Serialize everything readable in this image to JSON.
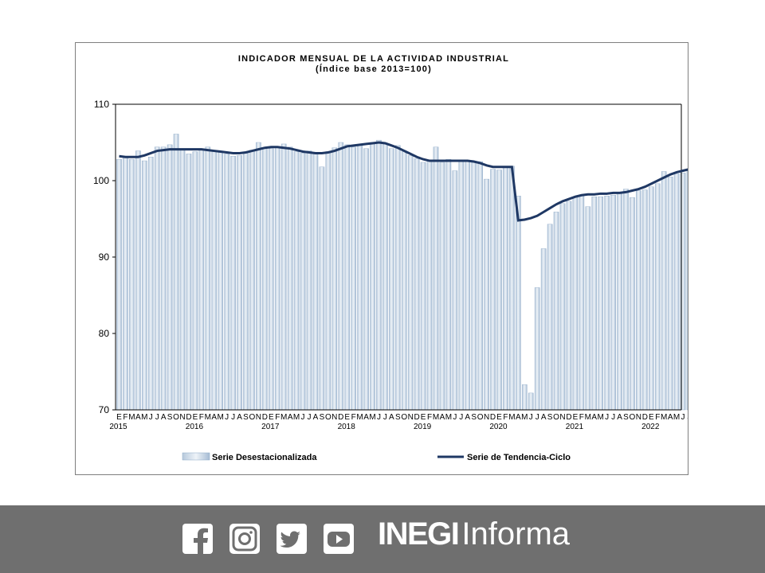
{
  "chart_data": {
    "type": "bar",
    "title": "INDICADOR MENSUAL DE LA ACTIVIDAD INDUSTRIAL",
    "subtitle": "(Índice base 2013=100)",
    "ylim": [
      70,
      110
    ],
    "yticks": [
      "70",
      "80",
      "90",
      "100",
      "110"
    ],
    "grid": false,
    "legend_position": "bottom",
    "month_labels": [
      "E",
      "F",
      "M",
      "A",
      "M",
      "J",
      "J",
      "A",
      "S",
      "O",
      "N",
      "D"
    ],
    "year_labels": [
      "2015",
      "2016",
      "2017",
      "2018",
      "2019",
      "2020",
      "2021",
      "2022"
    ],
    "categories_note": "Monthly, January 2015 to June 2022",
    "series": [
      {
        "name": "Serie Desestacionalizada",
        "kind": "bar",
        "values": [
          102.8,
          103.1,
          102.8,
          103.9,
          102.6,
          103.1,
          104.4,
          104.4,
          104.7,
          106.1,
          104.0,
          103.5,
          103.8,
          104.1,
          104.4,
          103.8,
          103.7,
          103.5,
          103.2,
          103.3,
          103.6,
          104.0,
          105.0,
          104.3,
          104.2,
          104.3,
          104.8,
          104.4,
          103.8,
          103.6,
          103.9,
          103.5,
          101.8,
          103.8,
          104.3,
          105.0,
          104.7,
          104.4,
          104.6,
          104.2,
          105.0,
          105.3,
          104.8,
          104.2,
          104.6,
          103.8,
          103.3,
          102.9,
          102.4,
          102.6,
          104.4,
          102.4,
          102.8,
          101.3,
          102.5,
          102.6,
          102.4,
          102.5,
          100.2,
          101.5,
          101.4,
          101.8,
          101.9,
          98.0,
          73.3,
          72.2,
          86.0,
          91.1,
          94.3,
          95.9,
          97.0,
          97.3,
          97.8,
          98.0,
          96.6,
          97.9,
          97.9,
          98.0,
          98.1,
          98.5,
          98.9,
          97.8,
          98.7,
          98.8,
          99.2,
          99.6,
          101.2,
          100.5,
          100.9,
          101.0,
          101.4
        ]
      },
      {
        "name": "Serie de Tendencia-Ciclo",
        "kind": "line",
        "color": "#1f3864",
        "values": [
          103.2,
          103.1,
          103.1,
          103.1,
          103.3,
          103.6,
          103.9,
          104.0,
          104.1,
          104.1,
          104.1,
          104.1,
          104.1,
          104.1,
          104.0,
          103.9,
          103.8,
          103.7,
          103.6,
          103.6,
          103.7,
          103.9,
          104.1,
          104.3,
          104.4,
          104.4,
          104.3,
          104.2,
          104.0,
          103.8,
          103.7,
          103.6,
          103.6,
          103.7,
          103.9,
          104.2,
          104.5,
          104.6,
          104.7,
          104.8,
          104.9,
          105.0,
          104.9,
          104.6,
          104.3,
          103.9,
          103.5,
          103.1,
          102.8,
          102.6,
          102.6,
          102.6,
          102.6,
          102.6,
          102.6,
          102.6,
          102.5,
          102.3,
          102.0,
          101.8,
          101.8,
          101.8,
          101.8,
          94.8,
          94.9,
          95.1,
          95.4,
          95.9,
          96.4,
          96.9,
          97.3,
          97.6,
          97.9,
          98.1,
          98.2,
          98.2,
          98.3,
          98.3,
          98.4,
          98.4,
          98.5,
          98.7,
          98.9,
          99.2,
          99.6,
          100.0,
          100.4,
          100.8,
          101.1,
          101.3,
          101.5
        ]
      }
    ]
  },
  "footer": {
    "social_icons": [
      "facebook-icon",
      "instagram-icon",
      "twitter-icon",
      "youtube-icon"
    ],
    "brand_bold": "INEGI",
    "brand_regular": "Informa",
    "background": "#6f6f6f"
  }
}
